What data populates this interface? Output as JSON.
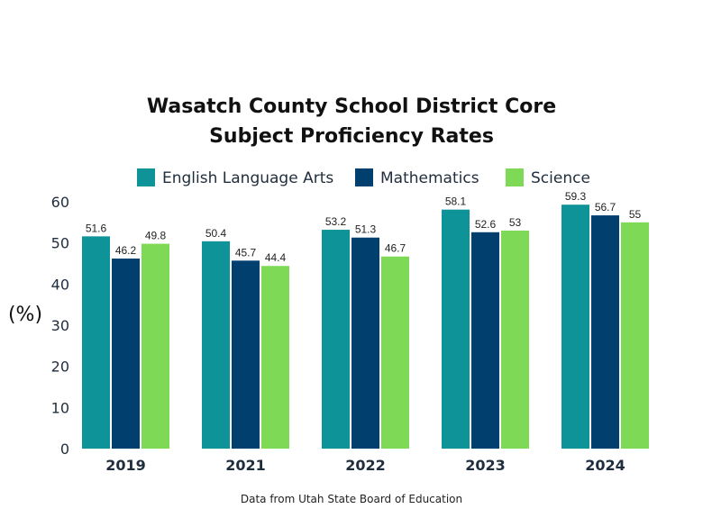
{
  "chart_data": {
    "type": "bar",
    "title_lines": [
      "Wasatch County School District Core",
      "Subject Proficiency Rates"
    ],
    "ylabel": "(%)",
    "xlabel": "",
    "categories": [
      "2019",
      "2021",
      "2022",
      "2023",
      "2024"
    ],
    "ylim": [
      0,
      60
    ],
    "yticks": [
      "0",
      "10",
      "20",
      "30",
      "40",
      "50",
      "60"
    ],
    "grid": false,
    "legend_position": "top",
    "series": [
      {
        "name": "English Language Arts",
        "color": "#0e9398",
        "values": [
          51.6,
          50.4,
          53.2,
          58.1,
          59.3
        ]
      },
      {
        "name": "Mathematics",
        "color": "#003f6e",
        "values": [
          46.2,
          45.7,
          51.3,
          52.6,
          56.7
        ]
      },
      {
        "name": "Science",
        "color": "#7ed957",
        "values": [
          49.8,
          44.4,
          46.7,
          53,
          55
        ]
      }
    ],
    "source": "Data from Utah State Board of Education"
  }
}
